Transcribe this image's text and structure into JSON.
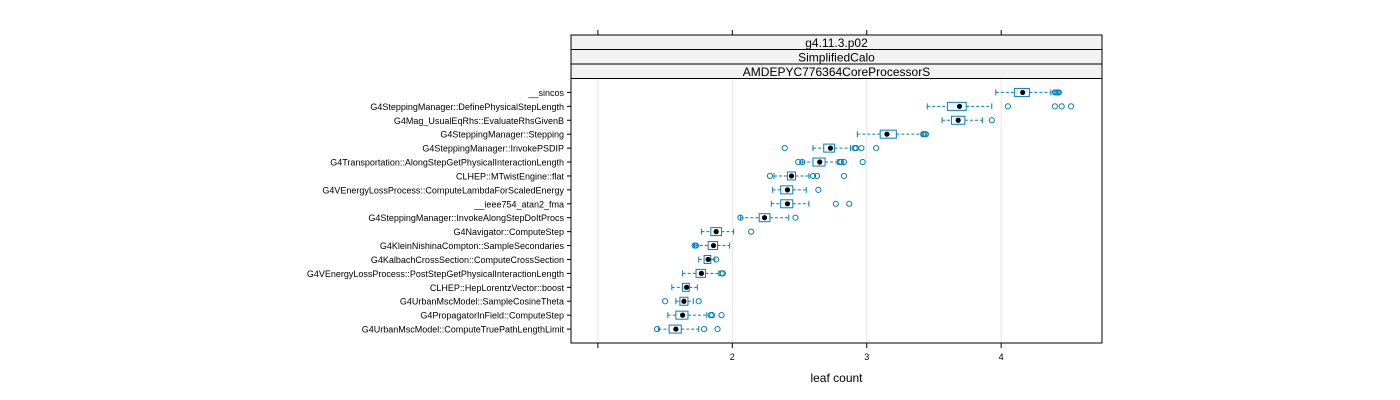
{
  "chart_data": {
    "type": "boxplot",
    "strips": [
      "g4.11.3.p02",
      "SimplifiedCalo",
      "AMDEPYC776364CoreProcessorS"
    ],
    "xlabel": "leaf count",
    "xlim": [
      0.8,
      4.75
    ],
    "xticks": [
      1,
      2,
      3,
      4
    ],
    "xtick_labels": [
      "",
      "2",
      "3",
      "4"
    ],
    "grid": "vertical",
    "colors": {
      "box": "#0080c0",
      "median": "#000000",
      "grid": "#e6e6e6",
      "strip_bg": "#f2f2f2"
    },
    "rows": [
      {
        "label": "__sincos",
        "whisker_low": 3.96,
        "q1": 4.1,
        "median": 4.16,
        "q3": 4.21,
        "whisker_high": 4.37,
        "outliers": [
          4.4,
          4.41,
          4.42,
          4.43
        ]
      },
      {
        "label": "G4SteppingManager::DefinePhysicalStepLength",
        "whisker_low": 3.45,
        "q1": 3.6,
        "median": 3.69,
        "q3": 3.74,
        "whisker_high": 3.93,
        "outliers": [
          4.05,
          4.4,
          4.45,
          4.52
        ]
      },
      {
        "label": "G4Mag_UsualEqRhs::EvaluateRhsGivenB",
        "whisker_low": 3.56,
        "q1": 3.63,
        "median": 3.68,
        "q3": 3.73,
        "whisker_high": 3.86,
        "outliers": [
          3.93
        ]
      },
      {
        "label": "G4SteppingManager::Stepping",
        "whisker_low": 2.93,
        "q1": 3.1,
        "median": 3.15,
        "q3": 3.22,
        "whisker_high": 3.41,
        "outliers": [
          3.42,
          3.43,
          3.44
        ]
      },
      {
        "label": "G4SteppingManager::InvokePSDIP",
        "whisker_low": 2.6,
        "q1": 2.68,
        "median": 2.73,
        "q3": 2.76,
        "whisker_high": 2.88,
        "outliers": [
          2.39,
          2.91,
          2.92,
          2.96,
          3.07
        ]
      },
      {
        "label": "G4Transportation::AlongStepGetPhysicalInteractionLength",
        "whisker_low": 2.52,
        "q1": 2.6,
        "median": 2.65,
        "q3": 2.69,
        "whisker_high": 2.78,
        "outliers": [
          2.49,
          2.52,
          2.8,
          2.81,
          2.83,
          2.97
        ]
      },
      {
        "label": "CLHEP::MTwistEngine::flat",
        "whisker_low": 2.31,
        "q1": 2.41,
        "median": 2.44,
        "q3": 2.47,
        "whisker_high": 2.57,
        "outliers": [
          2.28,
          2.6,
          2.63,
          2.83
        ]
      },
      {
        "label": "G4VEnergyLossProcess::ComputeLambdaForScaledEnergy",
        "whisker_low": 2.3,
        "q1": 2.36,
        "median": 2.41,
        "q3": 2.45,
        "whisker_high": 2.55,
        "outliers": [
          2.64
        ]
      },
      {
        "label": "__ieee754_atan2_fma",
        "whisker_low": 2.29,
        "q1": 2.36,
        "median": 2.41,
        "q3": 2.45,
        "whisker_high": 2.57,
        "outliers": [
          2.77,
          2.87
        ]
      },
      {
        "label": "G4SteppingManager::InvokeAlongStepDoItProcs",
        "whisker_low": 2.06,
        "q1": 2.2,
        "median": 2.24,
        "q3": 2.28,
        "whisker_high": 2.42,
        "outliers": [
          2.06,
          2.47
        ]
      },
      {
        "label": "G4Navigator::ComputeStep",
        "whisker_low": 1.77,
        "q1": 1.84,
        "median": 1.88,
        "q3": 1.92,
        "whisker_high": 2.01,
        "outliers": [
          2.14
        ]
      },
      {
        "label": "G4KleinNishinaCompton::SampleSecondaries",
        "whisker_low": 1.72,
        "q1": 1.82,
        "median": 1.86,
        "q3": 1.89,
        "whisker_high": 1.98,
        "outliers": [
          1.72,
          1.73
        ]
      },
      {
        "label": "G4KalbachCrossSection::ComputeCrossSection",
        "whisker_low": 1.75,
        "q1": 1.79,
        "median": 1.82,
        "q3": 1.84,
        "whisker_high": 1.87,
        "outliers": [
          1.88
        ]
      },
      {
        "label": "G4VEnergyLossProcess::PostStepGetPhysicalInteractionLength",
        "whisker_low": 1.63,
        "q1": 1.73,
        "median": 1.77,
        "q3": 1.8,
        "whisker_high": 1.9,
        "outliers": [
          1.92,
          1.93
        ]
      },
      {
        "label": "CLHEP::HepLorentzVector::boost",
        "whisker_low": 1.55,
        "q1": 1.63,
        "median": 1.66,
        "q3": 1.68,
        "whisker_high": 1.74,
        "outliers": []
      },
      {
        "label": "G4UrbanMscModel::SampleCosineTheta",
        "whisker_low": 1.58,
        "q1": 1.61,
        "median": 1.64,
        "q3": 1.67,
        "whisker_high": 1.71,
        "outliers": [
          1.5,
          1.75
        ]
      },
      {
        "label": "G4PropagatorInField::ComputeStep",
        "whisker_low": 1.52,
        "q1": 1.58,
        "median": 1.63,
        "q3": 1.67,
        "whisker_high": 1.81,
        "outliers": [
          1.84,
          1.85,
          1.92
        ]
      },
      {
        "label": "G4UrbanMscModel::ComputeTruePathLengthLimit",
        "whisker_low": 1.45,
        "q1": 1.53,
        "median": 1.58,
        "q3": 1.62,
        "whisker_high": 1.75,
        "outliers": [
          1.44,
          1.79,
          1.89
        ]
      }
    ]
  }
}
